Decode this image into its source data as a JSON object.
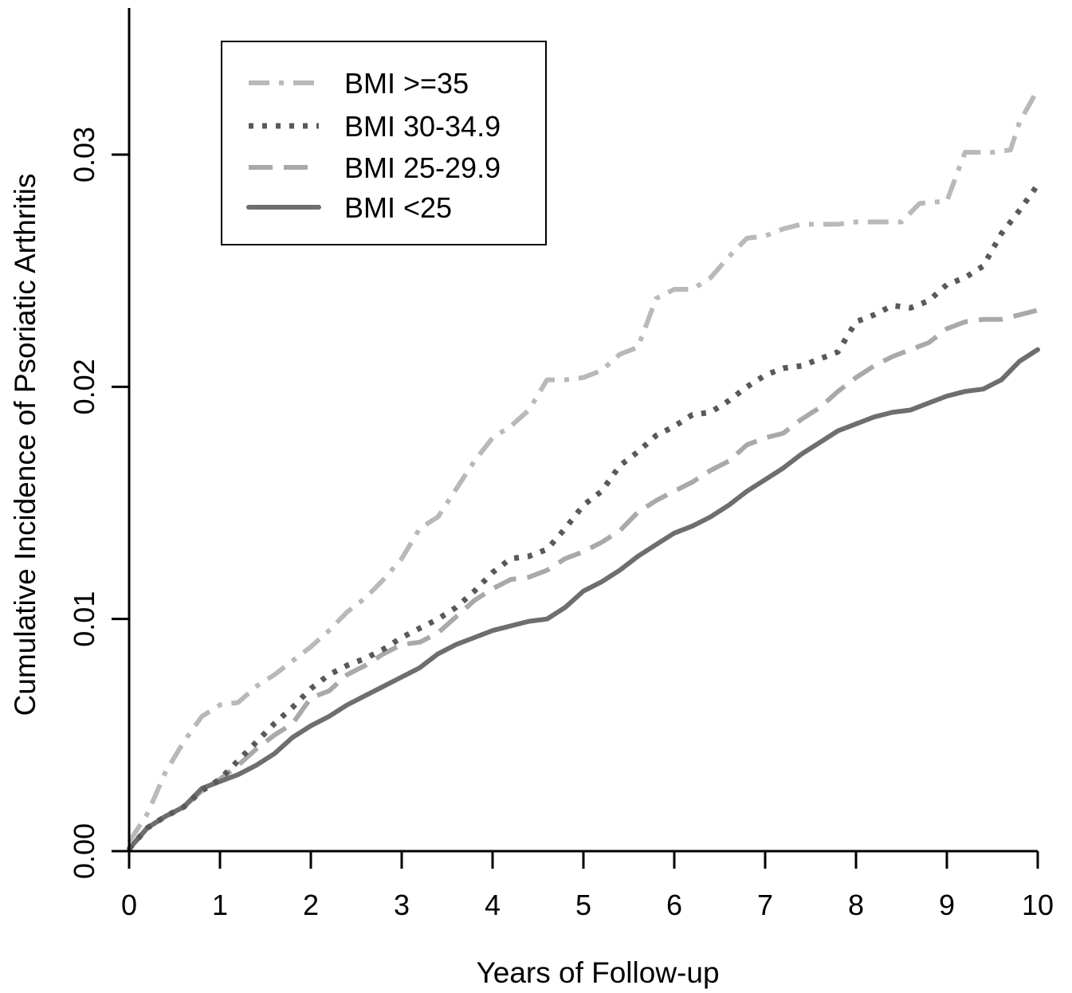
{
  "chart_data": {
    "type": "line",
    "title": "",
    "xlabel": "Years of Follow-up",
    "ylabel": "Cumulative Incidence of Psoriatic Arthritis",
    "xlim": [
      0,
      10
    ],
    "ylim": [
      0,
      0.035
    ],
    "xticks": [
      "0",
      "1",
      "2",
      "3",
      "4",
      "5",
      "6",
      "7",
      "8",
      "9",
      "10"
    ],
    "yticks": [
      "0.00",
      "0.01",
      "0.02",
      "0.03"
    ],
    "grid": false,
    "legend_position": "top-left",
    "series": [
      {
        "name": "BMI >=35",
        "color": "#b9b9b9",
        "line_style": "dash-dot",
        "points": [
          [
            0,
            0.0004
          ],
          [
            0.2,
            0.0016
          ],
          [
            0.4,
            0.0034
          ],
          [
            0.6,
            0.0047
          ],
          [
            0.8,
            0.0058
          ],
          [
            1,
            0.0063
          ],
          [
            1.2,
            0.0064
          ],
          [
            1.4,
            0.0071
          ],
          [
            1.6,
            0.0076
          ],
          [
            1.8,
            0.0082
          ],
          [
            2,
            0.0088
          ],
          [
            2.2,
            0.0095
          ],
          [
            2.4,
            0.0103
          ],
          [
            2.6,
            0.0109
          ],
          [
            2.8,
            0.0117
          ],
          [
            3,
            0.0126
          ],
          [
            3.2,
            0.0139
          ],
          [
            3.4,
            0.0144
          ],
          [
            3.6,
            0.0156
          ],
          [
            3.8,
            0.0168
          ],
          [
            4,
            0.0178
          ],
          [
            4.2,
            0.0183
          ],
          [
            4.4,
            0.019
          ],
          [
            4.6,
            0.0203
          ],
          [
            4.8,
            0.0203
          ],
          [
            5,
            0.0204
          ],
          [
            5.2,
            0.0207
          ],
          [
            5.4,
            0.0214
          ],
          [
            5.6,
            0.0217
          ],
          [
            5.8,
            0.0238
          ],
          [
            6,
            0.0242
          ],
          [
            6.2,
            0.0242
          ],
          [
            6.4,
            0.0247
          ],
          [
            6.6,
            0.0256
          ],
          [
            6.8,
            0.0264
          ],
          [
            7,
            0.0265
          ],
          [
            7.2,
            0.0268
          ],
          [
            7.4,
            0.027
          ],
          [
            7.8,
            0.027
          ],
          [
            8,
            0.0271
          ],
          [
            8.5,
            0.0271
          ],
          [
            8.7,
            0.0279
          ],
          [
            9,
            0.028
          ],
          [
            9.2,
            0.0301
          ],
          [
            9.5,
            0.0301
          ],
          [
            9.7,
            0.0302
          ],
          [
            9.8,
            0.0314
          ],
          [
            10,
            0.0328
          ]
        ]
      },
      {
        "name": "BMI 30-34.9",
        "color": "#595959",
        "line_style": "dotted",
        "points": [
          [
            0,
            0.0001
          ],
          [
            0.2,
            0.001
          ],
          [
            0.4,
            0.0015
          ],
          [
            0.6,
            0.0019
          ],
          [
            0.8,
            0.0026
          ],
          [
            1,
            0.0031
          ],
          [
            1.2,
            0.0039
          ],
          [
            1.4,
            0.0047
          ],
          [
            1.6,
            0.0055
          ],
          [
            1.8,
            0.0062
          ],
          [
            2,
            0.007
          ],
          [
            2.2,
            0.0076
          ],
          [
            2.4,
            0.008
          ],
          [
            2.6,
            0.0083
          ],
          [
            2.8,
            0.0087
          ],
          [
            3,
            0.0092
          ],
          [
            3.2,
            0.0096
          ],
          [
            3.4,
            0.01
          ],
          [
            3.6,
            0.0105
          ],
          [
            3.8,
            0.0112
          ],
          [
            4,
            0.012
          ],
          [
            4.2,
            0.0126
          ],
          [
            4.4,
            0.0127
          ],
          [
            4.6,
            0.013
          ],
          [
            4.8,
            0.0139
          ],
          [
            5,
            0.0149
          ],
          [
            5.2,
            0.0155
          ],
          [
            5.4,
            0.0166
          ],
          [
            5.6,
            0.0172
          ],
          [
            5.8,
            0.0179
          ],
          [
            6,
            0.0183
          ],
          [
            6.2,
            0.0188
          ],
          [
            6.4,
            0.0189
          ],
          [
            6.6,
            0.0194
          ],
          [
            6.8,
            0.02
          ],
          [
            7,
            0.0205
          ],
          [
            7.2,
            0.0208
          ],
          [
            7.4,
            0.0209
          ],
          [
            7.6,
            0.0212
          ],
          [
            7.8,
            0.0215
          ],
          [
            8,
            0.0228
          ],
          [
            8.2,
            0.0231
          ],
          [
            8.4,
            0.0235
          ],
          [
            8.6,
            0.0234
          ],
          [
            8.8,
            0.0237
          ],
          [
            9,
            0.0244
          ],
          [
            9.2,
            0.0247
          ],
          [
            9.4,
            0.0252
          ],
          [
            9.6,
            0.0266
          ],
          [
            9.8,
            0.0276
          ],
          [
            10,
            0.0287
          ]
        ]
      },
      {
        "name": "BMI 25-29.9",
        "color": "#a9a9a9",
        "line_style": "dashed",
        "points": [
          [
            0,
            0.0001
          ],
          [
            0.2,
            0.001
          ],
          [
            0.4,
            0.0015
          ],
          [
            0.6,
            0.0019
          ],
          [
            0.8,
            0.0026
          ],
          [
            1,
            0.0031
          ],
          [
            1.2,
            0.0037
          ],
          [
            1.4,
            0.0044
          ],
          [
            1.6,
            0.005
          ],
          [
            1.8,
            0.0055
          ],
          [
            2,
            0.0066
          ],
          [
            2.2,
            0.0069
          ],
          [
            2.4,
            0.0076
          ],
          [
            2.6,
            0.008
          ],
          [
            2.8,
            0.0085
          ],
          [
            3,
            0.0089
          ],
          [
            3.2,
            0.009
          ],
          [
            3.4,
            0.0094
          ],
          [
            3.6,
            0.0101
          ],
          [
            3.8,
            0.0108
          ],
          [
            4,
            0.0113
          ],
          [
            4.2,
            0.0117
          ],
          [
            4.4,
            0.0118
          ],
          [
            4.6,
            0.0121
          ],
          [
            4.8,
            0.0126
          ],
          [
            5,
            0.0129
          ],
          [
            5.2,
            0.0133
          ],
          [
            5.4,
            0.0138
          ],
          [
            5.6,
            0.0146
          ],
          [
            5.8,
            0.0151
          ],
          [
            6,
            0.0155
          ],
          [
            6.2,
            0.0159
          ],
          [
            6.4,
            0.0164
          ],
          [
            6.6,
            0.0168
          ],
          [
            6.8,
            0.0175
          ],
          [
            7,
            0.0178
          ],
          [
            7.2,
            0.018
          ],
          [
            7.4,
            0.0186
          ],
          [
            7.6,
            0.0191
          ],
          [
            7.8,
            0.0198
          ],
          [
            8,
            0.0204
          ],
          [
            8.2,
            0.0209
          ],
          [
            8.4,
            0.0213
          ],
          [
            8.6,
            0.0216
          ],
          [
            8.8,
            0.0219
          ],
          [
            9,
            0.0225
          ],
          [
            9.2,
            0.0228
          ],
          [
            9.4,
            0.0229
          ],
          [
            9.6,
            0.0229
          ],
          [
            9.8,
            0.0231
          ],
          [
            10,
            0.0233
          ]
        ]
      },
      {
        "name": "BMI <25",
        "color": "#6e6e6e",
        "line_style": "solid",
        "points": [
          [
            0,
            0.0001
          ],
          [
            0.2,
            0.001
          ],
          [
            0.4,
            0.0015
          ],
          [
            0.6,
            0.0019
          ],
          [
            0.8,
            0.0027
          ],
          [
            1,
            0.003
          ],
          [
            1.2,
            0.0033
          ],
          [
            1.4,
            0.0037
          ],
          [
            1.6,
            0.0042
          ],
          [
            1.8,
            0.0049
          ],
          [
            2,
            0.0054
          ],
          [
            2.2,
            0.0058
          ],
          [
            2.4,
            0.0063
          ],
          [
            2.6,
            0.0067
          ],
          [
            2.8,
            0.0071
          ],
          [
            3,
            0.0075
          ],
          [
            3.2,
            0.0079
          ],
          [
            3.4,
            0.0085
          ],
          [
            3.6,
            0.0089
          ],
          [
            3.8,
            0.0092
          ],
          [
            4,
            0.0095
          ],
          [
            4.2,
            0.0097
          ],
          [
            4.4,
            0.0099
          ],
          [
            4.6,
            0.01
          ],
          [
            4.8,
            0.0105
          ],
          [
            5,
            0.0112
          ],
          [
            5.2,
            0.0116
          ],
          [
            5.4,
            0.0121
          ],
          [
            5.6,
            0.0127
          ],
          [
            5.8,
            0.0132
          ],
          [
            6,
            0.0137
          ],
          [
            6.2,
            0.014
          ],
          [
            6.4,
            0.0144
          ],
          [
            6.6,
            0.0149
          ],
          [
            6.8,
            0.0155
          ],
          [
            7,
            0.016
          ],
          [
            7.2,
            0.0165
          ],
          [
            7.4,
            0.0171
          ],
          [
            7.6,
            0.0176
          ],
          [
            7.8,
            0.0181
          ],
          [
            8,
            0.0184
          ],
          [
            8.2,
            0.0187
          ],
          [
            8.4,
            0.0189
          ],
          [
            8.6,
            0.019
          ],
          [
            8.8,
            0.0193
          ],
          [
            9,
            0.0196
          ],
          [
            9.2,
            0.0198
          ],
          [
            9.4,
            0.0199
          ],
          [
            9.6,
            0.0203
          ],
          [
            9.8,
            0.0211
          ],
          [
            10,
            0.0216
          ]
        ]
      }
    ]
  }
}
